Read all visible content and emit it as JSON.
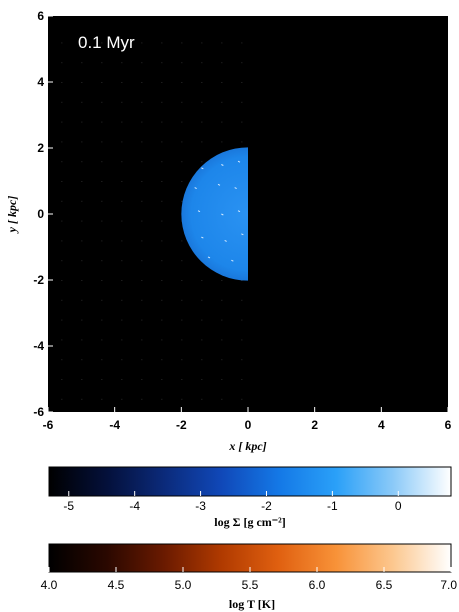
{
  "chart_data": [
    {
      "type": "heatmap",
      "panel_label": "0.1 Myr",
      "xlabel": "x [ kpc]",
      "ylabel": "y [ kpc]",
      "xlim": [
        -6,
        6
      ],
      "ylim": [
        -6,
        6
      ],
      "x_ticks": [
        "-6",
        "-4",
        "-2",
        "0",
        "2",
        "4",
        "6"
      ],
      "y_ticks": [
        "6",
        "4",
        "2",
        "0",
        "-2",
        "-4",
        "-6"
      ],
      "background_color": "#000000",
      "left_half_quantity": "log Σ (surface density)",
      "right_half_quantity": "log T (temperature)",
      "disk": {
        "center": [
          0,
          0
        ],
        "radius_kpc": 2.0,
        "visible_half": "left",
        "color": "#1e8ef0"
      }
    },
    {
      "type": "colorbar",
      "label": "log Σ [g cm⁻²]",
      "ticks": [
        "-5",
        "-4",
        "-3",
        "-2",
        "-1",
        "0"
      ],
      "tick_values": [
        -5,
        -4,
        -3,
        -2,
        -1,
        0
      ],
      "range": [
        -5.3,
        0.8
      ],
      "colors": [
        "#000000",
        "#04103a",
        "#0b2a7a",
        "#1048b8",
        "#1478e6",
        "#2aa0f8",
        "#8ccaf8",
        "#ffffff"
      ]
    },
    {
      "type": "colorbar",
      "label": "log T [K]",
      "ticks": [
        "4.0",
        "4.5",
        "5.0",
        "5.5",
        "6.0",
        "6.5",
        "7.0"
      ],
      "tick_values": [
        4.0,
        4.5,
        5.0,
        5.5,
        6.0,
        6.5,
        7.0
      ],
      "range": [
        4.0,
        7.0
      ],
      "colors": [
        "#000000",
        "#2a0800",
        "#6a1a00",
        "#b03a00",
        "#e06010",
        "#f89238",
        "#fcc890",
        "#ffffff"
      ]
    }
  ]
}
